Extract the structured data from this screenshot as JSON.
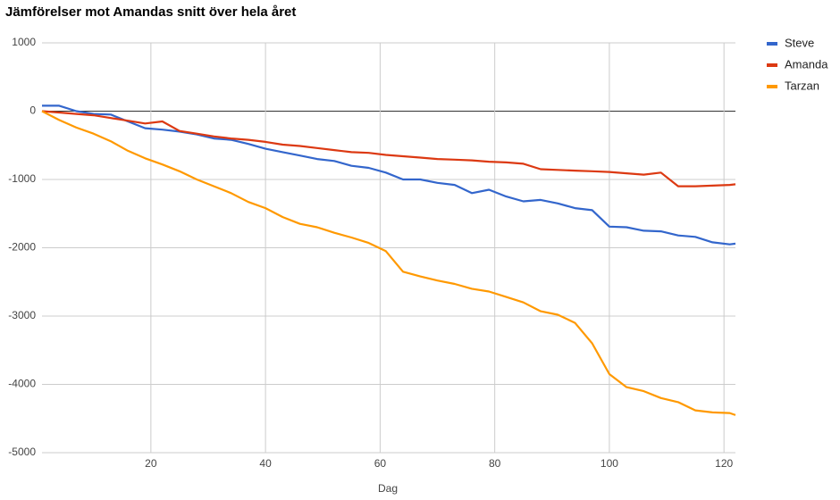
{
  "chart_data": {
    "type": "line",
    "title": "Jämförelser mot Amandas snitt över hela året",
    "x_label": "Dag",
    "x": [
      1,
      4,
      7,
      10,
      13,
      16,
      19,
      22,
      25,
      28,
      31,
      34,
      37,
      40,
      43,
      46,
      49,
      52,
      55,
      58,
      61,
      64,
      67,
      70,
      73,
      76,
      79,
      82,
      85,
      88,
      91,
      94,
      97,
      100,
      103,
      106,
      109,
      112,
      115,
      118,
      121,
      122
    ],
    "series": [
      {
        "name": "Steve",
        "color": "#3366cc",
        "values": [
          80,
          80,
          0,
          -40,
          -50,
          -150,
          -250,
          -270,
          -300,
          -340,
          -400,
          -420,
          -480,
          -550,
          -600,
          -650,
          -700,
          -730,
          -800,
          -830,
          -900,
          -1000,
          -1000,
          -1050,
          -1080,
          -1200,
          -1150,
          -1250,
          -1320,
          -1300,
          -1350,
          -1420,
          -1450,
          -1690,
          -1700,
          -1750,
          -1760,
          -1820,
          -1840,
          -1920,
          -1950,
          -1940
        ]
      },
      {
        "name": "Amanda",
        "color": "#dc3912",
        "values": [
          0,
          -20,
          -40,
          -60,
          -100,
          -140,
          -180,
          -150,
          -290,
          -330,
          -370,
          -400,
          -420,
          -450,
          -490,
          -510,
          -540,
          -570,
          -600,
          -610,
          -640,
          -660,
          -680,
          -700,
          -710,
          -720,
          -740,
          -750,
          -770,
          -850,
          -860,
          -870,
          -880,
          -890,
          -910,
          -930,
          -900,
          -1100,
          -1100,
          -1090,
          -1080,
          -1070
        ]
      },
      {
        "name": "Tarzan",
        "color": "#ff9900",
        "values": [
          0,
          -130,
          -240,
          -330,
          -440,
          -580,
          -690,
          -780,
          -880,
          -1000,
          -1100,
          -1200,
          -1330,
          -1420,
          -1550,
          -1650,
          -1700,
          -1780,
          -1850,
          -1930,
          -2050,
          -2350,
          -2420,
          -2480,
          -2530,
          -2600,
          -2640,
          -2720,
          -2800,
          -2930,
          -2980,
          -3100,
          -3400,
          -3850,
          -4040,
          -4100,
          -4200,
          -4260,
          -4380,
          -4410,
          -4420,
          -4450
        ]
      }
    ],
    "xlim": [
      1,
      122
    ],
    "xticks": [
      20,
      40,
      60,
      80,
      100,
      120
    ],
    "ylim": [
      -5000,
      1000
    ],
    "yticks": [
      1000,
      0,
      -1000,
      -2000,
      -3000,
      -4000,
      -5000
    ],
    "grid": true,
    "legend": "right"
  }
}
